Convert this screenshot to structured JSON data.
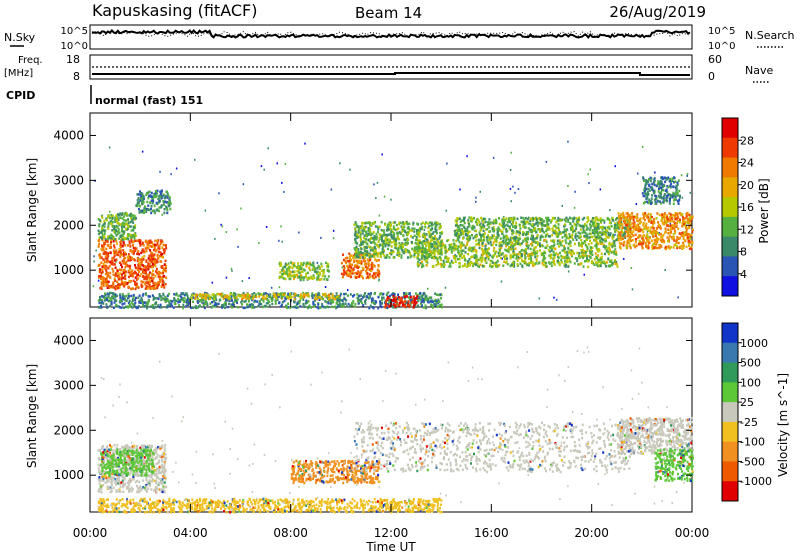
{
  "header": {
    "station": "Kapuskasing (fitACF)",
    "beam": "Beam 14",
    "date": "26/Aug/2019"
  },
  "noise_panel": {
    "left_label": "N.Sky",
    "right_label": "N.Search",
    "left_ticks": [
      "10^5",
      "10^0"
    ],
    "right_ticks": [
      "10^5",
      "10^0"
    ]
  },
  "freq_panel": {
    "left_label_line1": "Freq.",
    "left_label_line2": "[MHz]",
    "right_label": "Nave",
    "left_ticks": [
      "18",
      "8"
    ],
    "right_ticks": [
      "60",
      "0"
    ]
  },
  "cpid": {
    "label": "CPID",
    "value": "normal (fast) 151"
  },
  "chart_data": [
    {
      "type": "heatmap",
      "name": "power",
      "ylabel": "Slant Range [km]",
      "xlabel": "",
      "ylim": [
        180,
        4500
      ],
      "yticks": [
        "1000",
        "2000",
        "3000",
        "4000"
      ],
      "colorbar_label": "Power [dB]",
      "colorbar_ticks": [
        "4",
        "8",
        "12",
        "16",
        "20",
        "24",
        "28"
      ],
      "colorscale": [
        "#1010e0",
        "#2a55b5",
        "#3a8a6a",
        "#55b040",
        "#b5c800",
        "#e8a800",
        "#f07a00",
        "#ee3a00",
        "#e00000"
      ],
      "patches": [
        {
          "t": [
            0.3,
            3.0
          ],
          "r": [
            600,
            1700
          ],
          "level": 26
        },
        {
          "t": [
            0.3,
            1.8
          ],
          "r": [
            1700,
            2300
          ],
          "level": 12
        },
        {
          "t": [
            1.8,
            3.2
          ],
          "r": [
            2300,
            2800
          ],
          "level": 8
        },
        {
          "t": [
            0.3,
            14.0
          ],
          "r": [
            180,
            520
          ],
          "level": 8
        },
        {
          "t": [
            4.0,
            10.0
          ],
          "r": [
            380,
            500
          ],
          "level": 18
        },
        {
          "t": [
            7.5,
            9.5
          ],
          "r": [
            800,
            1200
          ],
          "level": 14
        },
        {
          "t": [
            10.0,
            11.5
          ],
          "r": [
            850,
            1400
          ],
          "level": 24
        },
        {
          "t": [
            11.7,
            13.0
          ],
          "r": [
            200,
            450
          ],
          "level": 30
        },
        {
          "t": [
            10.5,
            14.0
          ],
          "r": [
            1300,
            2100
          ],
          "level": 12
        },
        {
          "t": [
            13.0,
            21.0
          ],
          "r": [
            1100,
            1700
          ],
          "level": 14
        },
        {
          "t": [
            14.5,
            21.5
          ],
          "r": [
            1700,
            2200
          ],
          "level": 12
        },
        {
          "t": [
            21.0,
            24.0
          ],
          "r": [
            1500,
            2300
          ],
          "level": 22
        },
        {
          "t": [
            22.0,
            23.5
          ],
          "r": [
            2500,
            3100
          ],
          "level": 8
        }
      ]
    },
    {
      "type": "heatmap",
      "name": "velocity",
      "ylabel": "Slant Range [km]",
      "xlabel": "Time UT",
      "ylim": [
        180,
        4500
      ],
      "yticks": [
        "1000",
        "2000",
        "3000",
        "4000"
      ],
      "xticks": [
        "00:00",
        "04:00",
        "08:00",
        "12:00",
        "16:00",
        "20:00",
        "00:00"
      ],
      "xlim_hours": [
        0,
        24
      ],
      "colorbar_label": "Velocity [m s^-1]",
      "colorbar_ticks": [
        "1000",
        "500",
        "100",
        "25",
        "-25",
        "-100",
        "-500",
        "-1000"
      ],
      "colorscale": [
        "#1035c8",
        "#3a78b0",
        "#2f9a5a",
        "#5cc838",
        "#c8c8bc",
        "#f0c020",
        "#f09020",
        "#ee5a00",
        "#e00000"
      ],
      "patches": [
        {
          "t": [
            0.3,
            3.0
          ],
          "r": [
            650,
            1700
          ],
          "color": "#c8c8bc"
        },
        {
          "t": [
            0.4,
            2.5
          ],
          "r": [
            1000,
            1600
          ],
          "color": "#5cc838"
        },
        {
          "t": [
            0.3,
            14.0
          ],
          "r": [
            200,
            500
          ],
          "color": "#f0c020"
        },
        {
          "t": [
            8.0,
            11.5
          ],
          "r": [
            850,
            1350
          ],
          "color": "#f09020"
        },
        {
          "t": [
            10.5,
            21.5
          ],
          "r": [
            1100,
            2200
          ],
          "color": "#c8c8bc"
        },
        {
          "t": [
            21.0,
            24.0
          ],
          "r": [
            1500,
            2300
          ],
          "color": "#c8c8bc"
        },
        {
          "t": [
            22.5,
            24.0
          ],
          "r": [
            900,
            1600
          ],
          "color": "#5cc838"
        }
      ]
    }
  ]
}
